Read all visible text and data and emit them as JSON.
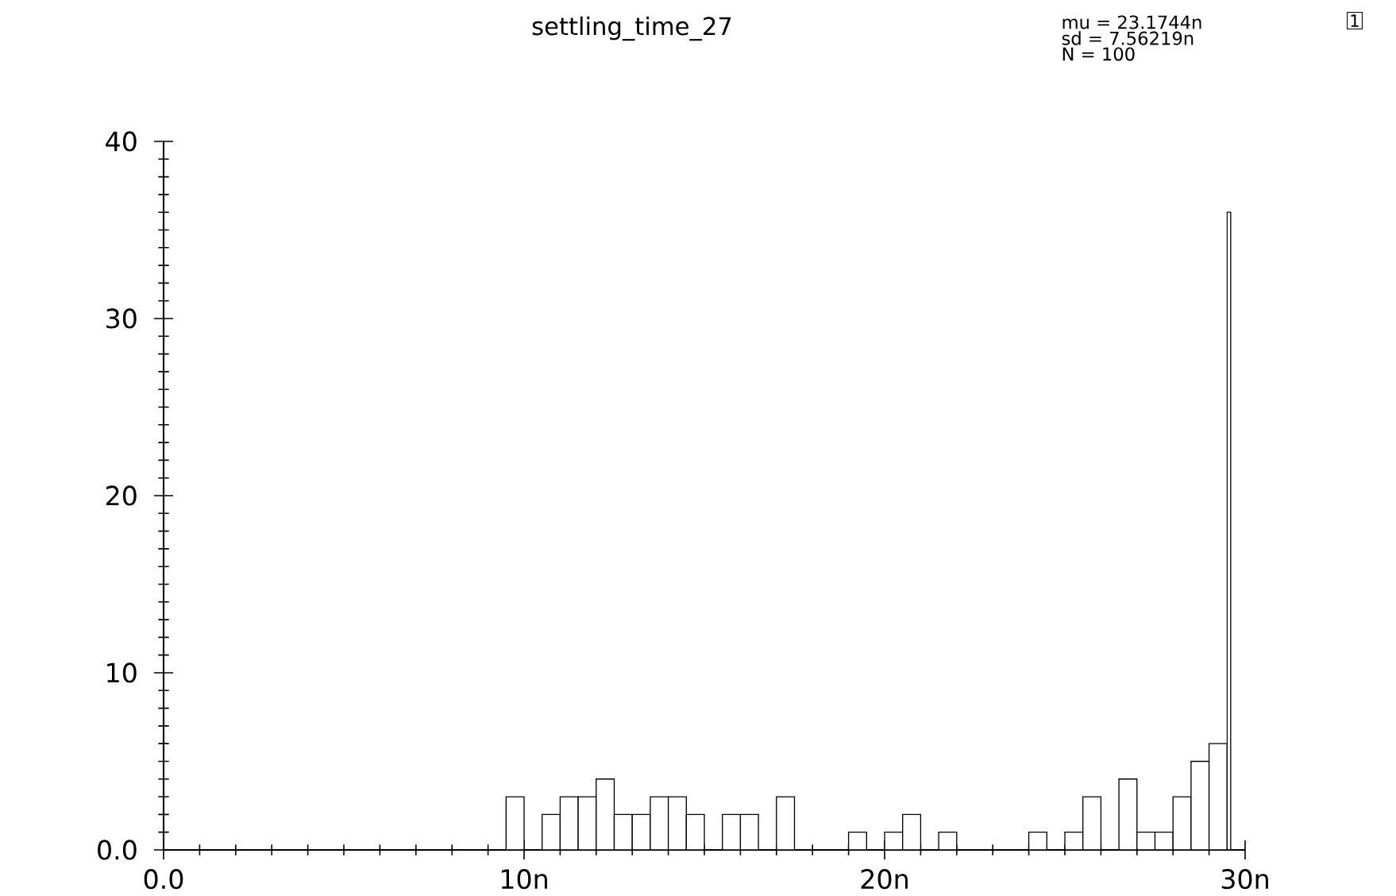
{
  "chart_data": {
    "type": "histogram",
    "title": "settling_time_27",
    "bins": [
      9.5,
      10,
      10.5,
      11,
      11.5,
      12,
      12.5,
      13,
      13.5,
      14,
      14.5,
      15,
      15.5,
      16,
      16.5,
      17,
      17.5,
      19,
      19.5,
      20,
      20.5,
      21,
      21.5,
      22,
      24,
      24.5,
      25,
      25.5,
      26,
      26.5,
      27,
      27.5,
      28,
      28.5,
      29,
      29.5,
      29.6
    ],
    "values": [
      3,
      0,
      2,
      3,
      3,
      4,
      2,
      2,
      3,
      3,
      2,
      0,
      2,
      2,
      0,
      3,
      0,
      1,
      0,
      1,
      2,
      0,
      1,
      0,
      1,
      0,
      1,
      3,
      0,
      4,
      1,
      1,
      3,
      5,
      6,
      36
    ],
    "color": "#ffffff",
    "xlim": [
      0,
      30
    ],
    "ylim": [
      0,
      40
    ],
    "xticks": [
      {
        "value": 0,
        "label": "0.0"
      },
      {
        "value": 1,
        "label": null
      },
      {
        "value": 2,
        "label": null
      },
      {
        "value": 3,
        "label": null
      },
      {
        "value": 4,
        "label": null
      },
      {
        "value": 5,
        "label": null
      },
      {
        "value": 6,
        "label": null
      },
      {
        "value": 7,
        "label": null
      },
      {
        "value": 8,
        "label": null
      },
      {
        "value": 9,
        "label": null
      },
      {
        "value": 10,
        "label": "10n"
      },
      {
        "value": 11,
        "label": null
      },
      {
        "value": 12,
        "label": null
      },
      {
        "value": 13,
        "label": null
      },
      {
        "value": 14,
        "label": null
      },
      {
        "value": 15,
        "label": null
      },
      {
        "value": 16,
        "label": null
      },
      {
        "value": 17,
        "label": null
      },
      {
        "value": 18,
        "label": null
      },
      {
        "value": 19,
        "label": null
      },
      {
        "value": 20,
        "label": "20n"
      },
      {
        "value": 21,
        "label": null
      },
      {
        "value": 22,
        "label": null
      },
      {
        "value": 23,
        "label": null
      },
      {
        "value": 24,
        "label": null
      },
      {
        "value": 25,
        "label": null
      },
      {
        "value": 26,
        "label": null
      },
      {
        "value": 27,
        "label": null
      },
      {
        "value": 28,
        "label": null
      },
      {
        "value": 29,
        "label": null
      },
      {
        "value": 30,
        "label": "30n"
      }
    ],
    "yticks": [
      {
        "value": 0,
        "label": "0.0"
      },
      {
        "value": 1,
        "label": null
      },
      {
        "value": 2,
        "label": null
      },
      {
        "value": 3,
        "label": null
      },
      {
        "value": 4,
        "label": null
      },
      {
        "value": 5,
        "label": null
      },
      {
        "value": 6,
        "label": null
      },
      {
        "value": 7,
        "label": null
      },
      {
        "value": 8,
        "label": null
      },
      {
        "value": 9,
        "label": null
      },
      10,
      {
        "value": 11,
        "label": null
      },
      {
        "value": 12,
        "label": null
      },
      {
        "value": 13,
        "label": null
      },
      {
        "value": 14,
        "label": null
      },
      {
        "value": 15,
        "label": null
      },
      {
        "value": 16,
        "label": null
      },
      {
        "value": 17,
        "label": null
      },
      {
        "value": 18,
        "label": null
      },
      {
        "value": 19,
        "label": null
      },
      20,
      {
        "value": 21,
        "label": null
      },
      {
        "value": 22,
        "label": null
      },
      {
        "value": 23,
        "label": null
      },
      {
        "value": 24,
        "label": null
      },
      {
        "value": 25,
        "label": null
      },
      {
        "value": 26,
        "label": null
      },
      {
        "value": 27,
        "label": null
      },
      {
        "value": 28,
        "label": null
      },
      {
        "value": 29,
        "label": null
      },
      30,
      {
        "value": 31,
        "label": null
      },
      {
        "value": 32,
        "label": null
      },
      {
        "value": 33,
        "label": null
      },
      {
        "value": 34,
        "label": null
      },
      {
        "value": 35,
        "label": null
      },
      {
        "value": 36,
        "label": null
      },
      {
        "value": 37,
        "label": null
      },
      {
        "value": 38,
        "label": null
      },
      {
        "value": 39,
        "label": null
      },
      40
    ],
    "grid": false,
    "annotations": [
      "mu = 23.1744n",
      "sd = 7.56219n",
      "N = 100",
      "1"
    ]
  }
}
